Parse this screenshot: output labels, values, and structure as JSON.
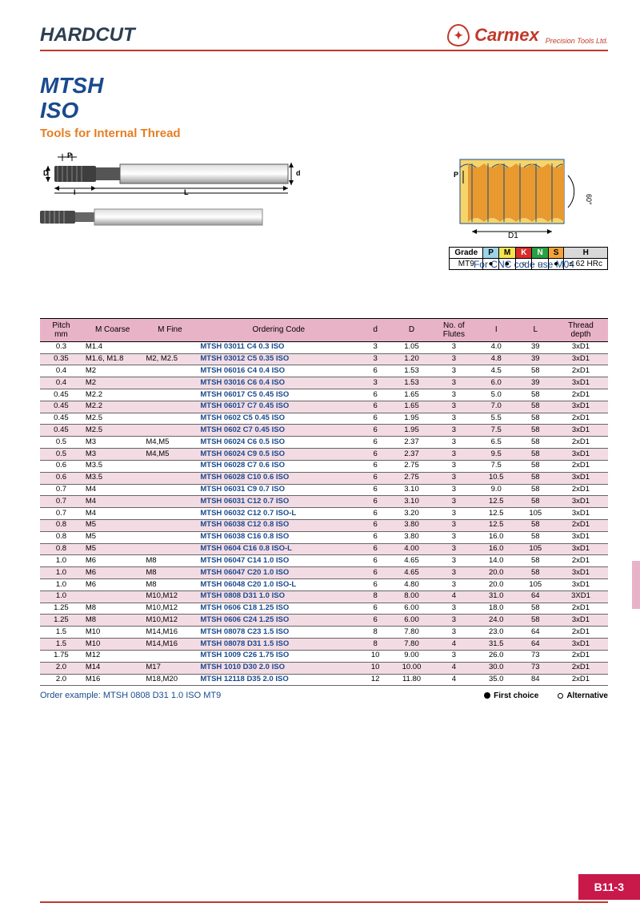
{
  "header": {
    "hardcut": "HARDCUT",
    "brand": "Carmex",
    "brand_sub": "Precision Tools Ltd."
  },
  "titles": {
    "line1": "MTSH",
    "line2": "ISO",
    "subtitle": "Tools for Internal Thread"
  },
  "thread_note": {
    "line1": "Left hand cutting",
    "line2": "For CNC code use M04"
  },
  "grade_table": {
    "labels": [
      "Grade",
      "P",
      "M",
      "K",
      "N",
      "S",
      "H"
    ],
    "row": [
      "MT9",
      "●",
      "●",
      "○",
      "○",
      "●",
      "≤ 62 HRc"
    ]
  },
  "columns": [
    "Pitch mm",
    "M Coarse",
    "M Fine",
    "Ordering Code",
    "d",
    "D",
    "No. of Flutes",
    "I",
    "L",
    "Thread depth"
  ],
  "rows": [
    {
      "s": 0,
      "pitch": "0.3",
      "mc": "M1.4",
      "mf": "",
      "oc": "MTSH 03011 C4   0.3   ISO",
      "d": "3",
      "D": "1.05",
      "fl": "3",
      "I": "4.0",
      "L": "39",
      "td": "3xD1"
    },
    {
      "s": 1,
      "pitch": "0.35",
      "mc": "M1.6, M1.8",
      "mf": "M2, M2.5",
      "oc": "MTSH 03012 C5   0.35 ISO",
      "d": "3",
      "D": "1.20",
      "fl": "3",
      "I": "4.8",
      "L": "39",
      "td": "3xD1"
    },
    {
      "s": 0,
      "pitch": "0.4",
      "mc": "M2",
      "mf": "",
      "oc": "MTSH 06016 C4   0.4   ISO",
      "d": "6",
      "D": "1.53",
      "fl": "3",
      "I": "4.5",
      "L": "58",
      "td": "2xD1"
    },
    {
      "s": 1,
      "pitch": "0.4",
      "mc": "M2",
      "mf": "",
      "oc": "MTSH 03016 C6   0.4   ISO",
      "d": "3",
      "D": "1.53",
      "fl": "3",
      "I": "6.0",
      "L": "39",
      "td": "3xD1"
    },
    {
      "s": 0,
      "pitch": "0.45",
      "mc": "M2.2",
      "mf": "",
      "oc": "MTSH 06017 C5   0.45 ISO",
      "d": "6",
      "D": "1.65",
      "fl": "3",
      "I": "5.0",
      "L": "58",
      "td": "2xD1"
    },
    {
      "s": 1,
      "pitch": "0.45",
      "mc": "M2.2",
      "mf": "",
      "oc": "MTSH 06017 C7   0.45 ISO",
      "d": "6",
      "D": "1.65",
      "fl": "3",
      "I": "7.0",
      "L": "58",
      "td": "3xD1"
    },
    {
      "s": 0,
      "pitch": "0.45",
      "mc": "M2.5",
      "mf": "",
      "oc": "MTSH 0602   C5   0.45 ISO",
      "d": "6",
      "D": "1.95",
      "fl": "3",
      "I": "5.5",
      "L": "58",
      "td": "2xD1"
    },
    {
      "s": 1,
      "pitch": "0.45",
      "mc": "M2.5",
      "mf": "",
      "oc": "MTSH 0602   C7   0.45 ISO",
      "d": "6",
      "D": "1.95",
      "fl": "3",
      "I": "7.5",
      "L": "58",
      "td": "3xD1"
    },
    {
      "s": 0,
      "pitch": "0.5",
      "mc": "M3",
      "mf": "M4,M5",
      "oc": "MTSH 06024 C6   0.5   ISO",
      "d": "6",
      "D": "2.37",
      "fl": "3",
      "I": "6.5",
      "L": "58",
      "td": "2xD1"
    },
    {
      "s": 1,
      "pitch": "0.5",
      "mc": "M3",
      "mf": "M4,M5",
      "oc": "MTSH 06024 C9   0.5   ISO",
      "d": "6",
      "D": "2.37",
      "fl": "3",
      "I": "9.5",
      "L": "58",
      "td": "3xD1"
    },
    {
      "s": 0,
      "pitch": "0.6",
      "mc": "M3.5",
      "mf": "",
      "oc": "MTSH 06028 C7   0.6   ISO",
      "d": "6",
      "D": "2.75",
      "fl": "3",
      "I": "7.5",
      "L": "58",
      "td": "2xD1"
    },
    {
      "s": 1,
      "pitch": "0.6",
      "mc": "M3.5",
      "mf": "",
      "oc": "MTSH 06028 C10 0.6   ISO",
      "d": "6",
      "D": "2.75",
      "fl": "3",
      "I": "10.5",
      "L": "58",
      "td": "3xD1"
    },
    {
      "s": 0,
      "pitch": "0.7",
      "mc": "M4",
      "mf": "",
      "oc": "MTSH 06031 C9   0.7   ISO",
      "d": "6",
      "D": "3.10",
      "fl": "3",
      "I": "9.0",
      "L": "58",
      "td": "2xD1"
    },
    {
      "s": 1,
      "pitch": "0.7",
      "mc": "M4",
      "mf": "",
      "oc": "MTSH 06031 C12 0.7   ISO",
      "d": "6",
      "D": "3.10",
      "fl": "3",
      "I": "12.5",
      "L": "58",
      "td": "3xD1"
    },
    {
      "s": 0,
      "pitch": "0.7",
      "mc": "M4",
      "mf": "",
      "oc": "MTSH 06032 C12 0.7   ISO-L",
      "d": "6",
      "D": "3.20",
      "fl": "3",
      "I": "12.5",
      "L": "105",
      "td": "3xD1"
    },
    {
      "s": 1,
      "pitch": "0.8",
      "mc": "M5",
      "mf": "",
      "oc": "MTSH 06038 C12 0.8   ISO",
      "d": "6",
      "D": "3.80",
      "fl": "3",
      "I": "12.5",
      "L": "58",
      "td": "2xD1"
    },
    {
      "s": 0,
      "pitch": "0.8",
      "mc": "M5",
      "mf": "",
      "oc": "MTSH 06038 C16 0.8   ISO",
      "d": "6",
      "D": "3.80",
      "fl": "3",
      "I": "16.0",
      "L": "58",
      "td": "3xD1"
    },
    {
      "s": 1,
      "pitch": "0.8",
      "mc": "M5",
      "mf": "",
      "oc": "MTSH 0604   C16 0.8   ISO-L",
      "d": "6",
      "D": "4.00",
      "fl": "3",
      "I": "16.0",
      "L": "105",
      "td": "3xD1"
    },
    {
      "s": 0,
      "pitch": "1.0",
      "mc": "M6",
      "mf": "M8",
      "oc": "MTSH 06047 C14 1.0   ISO",
      "d": "6",
      "D": "4.65",
      "fl": "3",
      "I": "14.0",
      "L": "58",
      "td": "2xD1"
    },
    {
      "s": 1,
      "pitch": "1.0",
      "mc": "M6",
      "mf": "M8",
      "oc": "MTSH 06047 C20 1.0   ISO",
      "d": "6",
      "D": "4.65",
      "fl": "3",
      "I": "20.0",
      "L": "58",
      "td": "3xD1"
    },
    {
      "s": 0,
      "pitch": "1.0",
      "mc": "M6",
      "mf": "M8",
      "oc": "MTSH 06048 C20 1.0   ISO-L",
      "d": "6",
      "D": "4.80",
      "fl": "3",
      "I": "20.0",
      "L": "105",
      "td": "3xD1"
    },
    {
      "s": 1,
      "pitch": "1.0",
      "mc": "",
      "mf": "M10,M12",
      "oc": "MTSH 0808   D31 1.0   ISO",
      "d": "8",
      "D": "8.00",
      "fl": "4",
      "I": "31.0",
      "L": "64",
      "td": "3XD1"
    },
    {
      "s": 0,
      "pitch": "1.25",
      "mc": "M8",
      "mf": "M10,M12",
      "oc": "MTSH 0606   C18 1.25 ISO",
      "d": "6",
      "D": "6.00",
      "fl": "3",
      "I": "18.0",
      "L": "58",
      "td": "2xD1"
    },
    {
      "s": 1,
      "pitch": "1.25",
      "mc": "M8",
      "mf": "M10,M12",
      "oc": "MTSH 0606   C24 1.25 ISO",
      "d": "6",
      "D": "6.00",
      "fl": "3",
      "I": "24.0",
      "L": "58",
      "td": "3xD1"
    },
    {
      "s": 0,
      "pitch": "1.5",
      "mc": "M10",
      "mf": "M14,M16",
      "oc": "MTSH 08078 C23 1.5   ISO",
      "d": "8",
      "D": "7.80",
      "fl": "3",
      "I": "23.0",
      "L": "64",
      "td": "2xD1"
    },
    {
      "s": 1,
      "pitch": "1.5",
      "mc": "M10",
      "mf": "M14,M16",
      "oc": "MTSH 08078 D31 1.5   ISO",
      "d": "8",
      "D": "7.80",
      "fl": "4",
      "I": "31.5",
      "L": "64",
      "td": "3xD1"
    },
    {
      "s": 0,
      "pitch": "1.75",
      "mc": "M12",
      "mf": "",
      "oc": "MTSH 1009   C26 1.75 ISO",
      "d": "10",
      "D": "9.00",
      "fl": "3",
      "I": "26.0",
      "L": "73",
      "td": "2xD1"
    },
    {
      "s": 1,
      "pitch": "2.0",
      "mc": "M14",
      "mf": "M17",
      "oc": "MTSH 1010   D30 2.0   ISO",
      "d": "10",
      "D": "10.00",
      "fl": "4",
      "I": "30.0",
      "L": "73",
      "td": "2xD1"
    },
    {
      "s": 0,
      "pitch": "2.0",
      "mc": "M16",
      "mf": "M18,M20",
      "oc": "MTSH 12118 D35 2.0   ISO",
      "d": "12",
      "D": "11.80",
      "fl": "4",
      "I": "35.0",
      "L": "84",
      "td": "2xD1"
    }
  ],
  "footer": {
    "example": "Order example: MTSH 0808 D31 1.0 ISO MT9",
    "first": "First choice",
    "alt": "Alternative"
  },
  "page": "B11-3",
  "col_widths": [
    "7%",
    "10%",
    "9%",
    "27%",
    "5%",
    "7%",
    "7%",
    "7%",
    "6%",
    "9%"
  ]
}
